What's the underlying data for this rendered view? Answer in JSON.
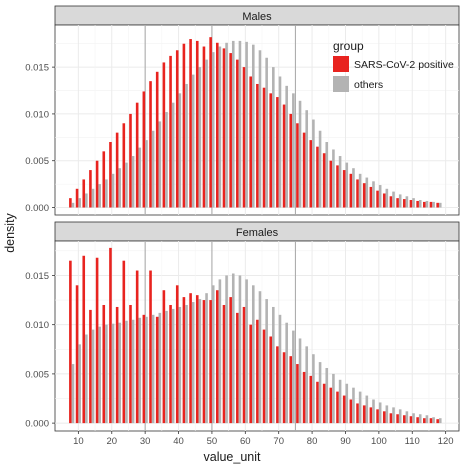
{
  "chart_data": {
    "type": "bar",
    "xlabel": "value_unit",
    "ylabel": "density",
    "x_ticks": [
      10,
      20,
      30,
      40,
      50,
      60,
      70,
      80,
      90,
      100,
      110,
      120
    ],
    "xlim": [
      3,
      124
    ],
    "vlines": [
      30,
      50,
      75
    ],
    "legend": {
      "title": "group",
      "placement": "top-right",
      "entries": [
        "SARS-CoV-2 positive",
        "others"
      ]
    },
    "colors": {
      "SARS-CoV-2 positive": "#e8231f",
      "others": "#b3b3b3"
    },
    "x": [
      8,
      10,
      12,
      14,
      16,
      18,
      20,
      22,
      24,
      26,
      28,
      30,
      32,
      34,
      36,
      38,
      40,
      42,
      44,
      46,
      48,
      50,
      52,
      54,
      56,
      58,
      60,
      62,
      64,
      66,
      68,
      70,
      72,
      74,
      76,
      78,
      80,
      82,
      84,
      86,
      88,
      90,
      92,
      94,
      96,
      98,
      100,
      102,
      104,
      106,
      108,
      110,
      112,
      114,
      116,
      118
    ],
    "panels": [
      {
        "title": "Males",
        "ylim": [
          -0.0008,
          0.0195
        ],
        "y_ticks": [
          0.0,
          0.005,
          0.01,
          0.015
        ],
        "y_tick_labels": [
          "0.000",
          "0.005",
          "0.010",
          "0.015"
        ],
        "series": [
          {
            "name": "SARS-CoV-2 positive",
            "values": [
              0.001,
              0.002,
              0.003,
              0.004,
              0.005,
              0.006,
              0.007,
              0.008,
              0.009,
              0.01,
              0.0112,
              0.0124,
              0.0135,
              0.0145,
              0.0155,
              0.0162,
              0.0168,
              0.0175,
              0.018,
              0.0178,
              0.0172,
              0.0182,
              0.0176,
              0.017,
              0.0165,
              0.0158,
              0.015,
              0.014,
              0.0132,
              0.0128,
              0.0122,
              0.0118,
              0.011,
              0.01,
              0.009,
              0.008,
              0.0072,
              0.0065,
              0.0058,
              0.005,
              0.0045,
              0.004,
              0.0036,
              0.003,
              0.0026,
              0.0022,
              0.0018,
              0.0015,
              0.0012,
              0.001,
              0.0009,
              0.0008,
              0.0007,
              0.0006,
              0.0006,
              0.0005
            ]
          },
          {
            "name": "others",
            "values": [
              0.0005,
              0.001,
              0.0015,
              0.002,
              0.0025,
              0.003,
              0.0036,
              0.0042,
              0.0048,
              0.0055,
              0.0064,
              0.0072,
              0.0082,
              0.0092,
              0.0102,
              0.0112,
              0.0122,
              0.0132,
              0.0142,
              0.015,
              0.0158,
              0.0166,
              0.0172,
              0.0176,
              0.0178,
              0.0178,
              0.0177,
              0.0174,
              0.0168,
              0.016,
              0.015,
              0.014,
              0.013,
              0.0122,
              0.0114,
              0.0104,
              0.0094,
              0.0082,
              0.007,
              0.0062,
              0.0055,
              0.0048,
              0.0042,
              0.0036,
              0.0032,
              0.0028,
              0.0024,
              0.002,
              0.0017,
              0.0014,
              0.0012,
              0.001,
              0.0008,
              0.0007,
              0.0006,
              0.0005
            ]
          }
        ]
      },
      {
        "title": "Females",
        "ylim": [
          -0.0008,
          0.0185
        ],
        "y_ticks": [
          0.0,
          0.005,
          0.01,
          0.015
        ],
        "y_tick_labels": [
          "0.000",
          "0.005",
          "0.010",
          "0.015"
        ],
        "series": [
          {
            "name": "SARS-CoV-2 positive",
            "values": [
              0.0165,
              0.014,
              0.017,
              0.0115,
              0.0168,
              0.012,
              0.0178,
              0.0118,
              0.0165,
              0.012,
              0.0155,
              0.011,
              0.0155,
              0.0108,
              0.0135,
              0.012,
              0.014,
              0.0128,
              0.0132,
              0.013,
              0.0125,
              0.0125,
              0.0135,
              0.012,
              0.0128,
              0.0112,
              0.0118,
              0.01,
              0.0105,
              0.0095,
              0.0088,
              0.0078,
              0.0072,
              0.0068,
              0.006,
              0.0052,
              0.0048,
              0.0042,
              0.004,
              0.0036,
              0.0032,
              0.0028,
              0.0024,
              0.002,
              0.0018,
              0.0016,
              0.0014,
              0.0012,
              0.001,
              0.0009,
              0.0008,
              0.0007,
              0.0006,
              0.0005,
              0.0005,
              0.0004
            ]
          },
          {
            "name": "others",
            "values": [
              0.006,
              0.008,
              0.009,
              0.0095,
              0.0098,
              0.01,
              0.0101,
              0.0102,
              0.0104,
              0.0105,
              0.0107,
              0.0108,
              0.011,
              0.0112,
              0.0114,
              0.0116,
              0.0118,
              0.012,
              0.0123,
              0.0126,
              0.0132,
              0.014,
              0.0146,
              0.015,
              0.0152,
              0.015,
              0.0146,
              0.014,
              0.0134,
              0.0126,
              0.0118,
              0.011,
              0.0102,
              0.0094,
              0.0086,
              0.0078,
              0.007,
              0.0062,
              0.0056,
              0.005,
              0.0044,
              0.004,
              0.0036,
              0.0032,
              0.0028,
              0.0024,
              0.0021,
              0.0018,
              0.0016,
              0.0014,
              0.0012,
              0.001,
              0.0009,
              0.0008,
              0.0006,
              0.0005
            ]
          }
        ]
      }
    ]
  }
}
